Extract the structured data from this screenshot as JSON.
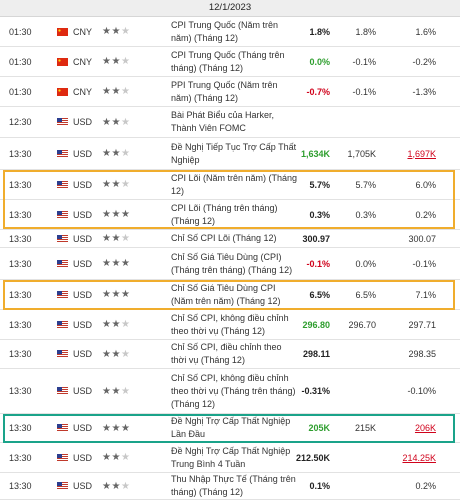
{
  "date": "12/1/2023",
  "colors": {
    "red": "#d0021b",
    "green": "#2e9e2e",
    "highlight_orange": "#f0ad2d",
    "highlight_teal": "#1aa38a"
  },
  "rows": [
    {
      "time": "01:30",
      "flag": "cn-flag-icon",
      "currency": "CNY",
      "stars": 2,
      "event": [
        "CPI Trung Quốc (Năm trên",
        "năm) (Tháng 12)"
      ],
      "actual": "1.8%",
      "actual_color": "dark",
      "forecast": "1.8%",
      "previous": "1.6%",
      "previous_style": ""
    },
    {
      "time": "01:30",
      "flag": "cn-flag-icon",
      "currency": "CNY",
      "stars": 2,
      "event": [
        "CPI Trung Quốc (Tháng trên",
        "tháng) (Tháng 12)"
      ],
      "actual": "0.0%",
      "actual_color": "green",
      "forecast": "-0.1%",
      "previous": "-0.2%",
      "previous_style": ""
    },
    {
      "time": "01:30",
      "flag": "cn-flag-icon",
      "currency": "CNY",
      "stars": 2,
      "event": [
        "PPI Trung Quốc (Năm trên",
        "năm) (Tháng 12)"
      ],
      "actual": "-0.7%",
      "actual_color": "red",
      "forecast": "-0.1%",
      "previous": "-1.3%",
      "previous_style": ""
    },
    {
      "time": "12:30",
      "flag": "us-flag-icon",
      "currency": "USD",
      "stars": 2,
      "event": [
        "Bài Phát Biểu của Harker,",
        "Thành Viên FOMC"
      ],
      "actual": "",
      "actual_color": "dark",
      "forecast": "",
      "previous": "",
      "previous_style": ""
    },
    {
      "time": "13:30",
      "flag": "us-flag-icon",
      "currency": "USD",
      "stars": 2,
      "event": [
        "Đề Nghị Tiếp Tục Trợ Cấp Thất",
        "Nghiệp"
      ],
      "actual": "1,634K",
      "actual_color": "green",
      "forecast": "1,705K",
      "previous": "1,697K",
      "previous_style": "red-uline"
    },
    {
      "time": "13:30",
      "flag": "us-flag-icon",
      "currency": "USD",
      "stars": 2,
      "event": [
        "CPI Lõi (Năm trên năm) (Tháng",
        "12)"
      ],
      "actual": "5.7%",
      "actual_color": "dark",
      "forecast": "5.7%",
      "previous": "6.0%",
      "previous_style": ""
    },
    {
      "time": "13:30",
      "flag": "us-flag-icon",
      "currency": "USD",
      "stars": 3,
      "event": [
        "CPI Lõi (Tháng trên tháng)",
        "(Tháng 12)"
      ],
      "actual": "0.3%",
      "actual_color": "dark",
      "forecast": "0.3%",
      "previous": "0.2%",
      "previous_style": ""
    },
    {
      "time": "13:30",
      "flag": "us-flag-icon",
      "currency": "USD",
      "stars": 2,
      "event": [
        "Chỉ Số CPI Lõi (Tháng 12)"
      ],
      "actual": "300.97",
      "actual_color": "dark",
      "forecast": "",
      "previous": "300.07",
      "previous_style": ""
    },
    {
      "time": "13:30",
      "flag": "us-flag-icon",
      "currency": "USD",
      "stars": 3,
      "event": [
        "Chỉ Số Giá Tiêu Dùng (CPI)",
        "(Tháng trên tháng) (Tháng 12)"
      ],
      "actual": "-0.1%",
      "actual_color": "red",
      "forecast": "0.0%",
      "previous": "-0.1%",
      "previous_style": ""
    },
    {
      "time": "13:30",
      "flag": "us-flag-icon",
      "currency": "USD",
      "stars": 3,
      "event": [
        "Chỉ Số Giá Tiêu Dùng CPI",
        "(Năm trên năm) (Tháng 12)"
      ],
      "actual": "6.5%",
      "actual_color": "dark",
      "forecast": "6.5%",
      "previous": "7.1%",
      "previous_style": ""
    },
    {
      "time": "13:30",
      "flag": "us-flag-icon",
      "currency": "USD",
      "stars": 2,
      "event": [
        "Chỉ Số CPI, không điều chỉnh",
        "theo thời vụ (Tháng 12)"
      ],
      "actual": "296.80",
      "actual_color": "green",
      "forecast": "296.70",
      "previous": "297.71",
      "previous_style": ""
    },
    {
      "time": "13:30",
      "flag": "us-flag-icon",
      "currency": "USD",
      "stars": 2,
      "event": [
        "Chỉ Số CPI, điều chỉnh theo",
        "thời vụ (Tháng 12)"
      ],
      "actual": "298.11",
      "actual_color": "dark",
      "forecast": "",
      "previous": "298.35",
      "previous_style": ""
    },
    {
      "time": "13:30",
      "flag": "us-flag-icon",
      "currency": "USD",
      "stars": 2,
      "event": [
        "Chỉ Số CPI, không điều chỉnh",
        "theo thời vụ (Tháng trên tháng)",
        "(Tháng 12)"
      ],
      "actual": "-0.31%",
      "actual_color": "dark",
      "forecast": "",
      "previous": "-0.10%",
      "previous_style": ""
    },
    {
      "time": "13:30",
      "flag": "us-flag-icon",
      "currency": "USD",
      "stars": 3,
      "event": [
        "Đề Nghị Trợ Cấp Thất Nghiệp",
        "Lần Đầu"
      ],
      "actual": "205K",
      "actual_color": "green",
      "forecast": "215K",
      "previous": "206K",
      "previous_style": "red-uline"
    },
    {
      "time": "13:30",
      "flag": "us-flag-icon",
      "currency": "USD",
      "stars": 2,
      "event": [
        "Đề Nghị Trợ Cấp Thất Nghiệp",
        "Trung Bình 4 Tuần"
      ],
      "actual": "212.50K",
      "actual_color": "dark",
      "forecast": "",
      "previous": "214.25K",
      "previous_style": "red-uline"
    },
    {
      "time": "13:30",
      "flag": "us-flag-icon",
      "currency": "USD",
      "stars": 2,
      "event": [
        "Thu Nhập Thực Tế (Tháng trên",
        "tháng) (Tháng 12)"
      ],
      "actual": "0.1%",
      "actual_color": "dark",
      "forecast": "",
      "previous": "0.2%",
      "previous_style": ""
    }
  ]
}
